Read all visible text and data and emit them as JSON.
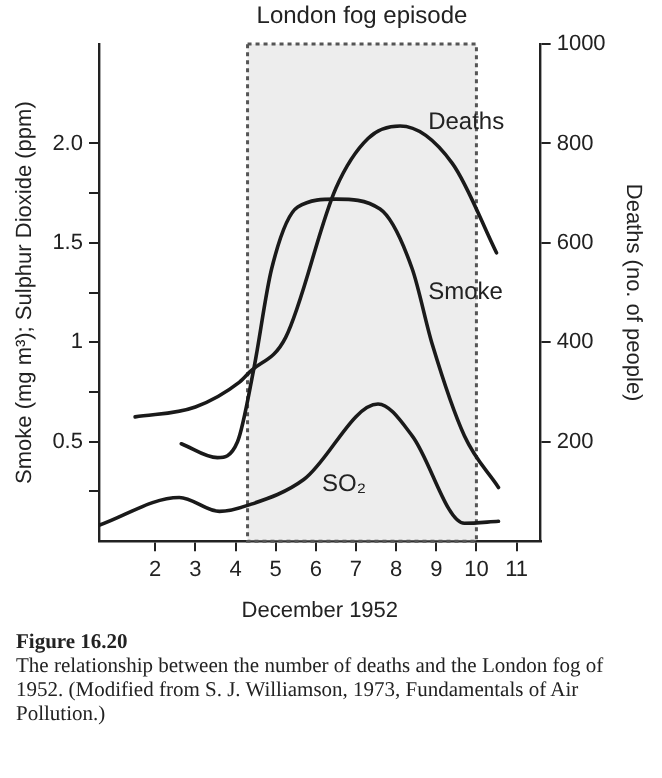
{
  "chart_data": {
    "type": "line",
    "xlabel": "December 1952",
    "ylabel": "Smoke (mg m³); Sulphur Dioxide (ppm)",
    "y2label": "Deaths (no. of people)",
    "series": [
      {
        "name": "Deaths",
        "color": "#1a1a1a",
        "axis": "y2",
        "x": [
          1.5,
          3.0,
          4.1,
          4.35,
          5.25,
          6.5,
          7.3,
          8.1,
          9.4,
          10.5
        ],
        "values": [
          250,
          270,
          320,
          340,
          410,
          710,
          810,
          835,
          760,
          580
        ]
      },
      {
        "name": "Smoke",
        "color": "#1a1a1a",
        "x": [
          2.65,
          3.55,
          4.05,
          4.45,
          4.9,
          5.55,
          6.5,
          7.6,
          8.4,
          8.9,
          9.7,
          10.55
        ],
        "values": [
          0.49,
          0.42,
          0.5,
          0.86,
          1.37,
          1.68,
          1.72,
          1.67,
          1.37,
          0.99,
          0.53,
          0.27
        ]
      },
      {
        "name": "SO₂",
        "color": "#1a1a1a",
        "x": [
          0.6,
          2.6,
          3.6,
          4.3,
          5.7,
          7.55,
          8.4,
          9.7,
          10.55
        ],
        "values": [
          0.08,
          0.22,
          0.15,
          0.18,
          0.31,
          0.69,
          0.53,
          0.09,
          0.1
        ]
      }
    ],
    "xlim": [
      0.6,
      11.6
    ],
    "xticks": [
      2,
      3,
      4,
      5,
      6,
      7,
      8,
      9,
      10,
      11
    ],
    "ylim": [
      0,
      2.5
    ],
    "yticks": [
      {
        "value": 0.25,
        "label": null
      },
      0.5,
      {
        "value": 0.75,
        "label": null
      },
      1,
      {
        "value": 1.25,
        "label": null
      },
      1.5,
      {
        "value": 1.75,
        "label": null
      },
      {
        "value": 2,
        "label": "2.0"
      }
    ],
    "y2lim": [
      0,
      1000
    ],
    "y2ticks": [
      200,
      400,
      600,
      800,
      1000
    ],
    "bands": [
      {
        "axis": "x",
        "from": 4.3,
        "to": 10.0,
        "label": "London fog episode",
        "color": "#cccccc"
      }
    ],
    "grid": false,
    "legend": false,
    "marker": "none",
    "line_style": "solid",
    "annotations": [
      "Figure 16.20",
      "The relationship between the number of deaths and the London fog of 1952. (Modified from S. J. Williamson, 1973, Fundamentals of Air Pollution.)"
    ]
  }
}
